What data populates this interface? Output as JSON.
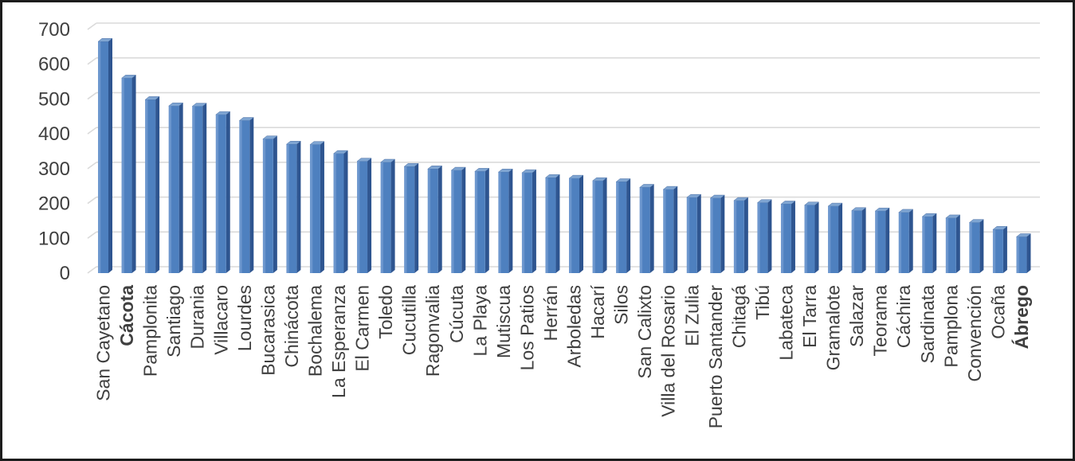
{
  "chart_data": {
    "type": "bar",
    "style": "3d-column-excel",
    "title": "",
    "xlabel": "",
    "ylabel": "",
    "categories": [
      "San Cayetano",
      "Cácota",
      "Pamplonita",
      "Santiago",
      "Durania",
      "Villacaro",
      "Lourdes",
      "Bucarasica",
      "Chinácota",
      "Bochalema",
      "La Esperanza",
      "El Carmen",
      "Toledo",
      "Cucutilla",
      "Ragonvalia",
      "Cúcuta",
      "La Playa",
      "Mutiscua",
      "Los Patios",
      "Herrán",
      "Arboledas",
      "Hacarí",
      "Silos",
      "San Calixto",
      "Villa del Rosario",
      "El Zulia",
      "Puerto Santander",
      "Chitagá",
      "Tibú",
      "Labateca",
      "El Tarra",
      "Gramalote",
      "Salazar",
      "Teorama",
      "Cáchira",
      "Sardinata",
      "Pamplona",
      "Convención",
      "Ocaña",
      "Ábrego"
    ],
    "values": [
      665,
      560,
      498,
      480,
      479,
      455,
      438,
      385,
      370,
      369,
      343,
      321,
      318,
      306,
      299,
      295,
      292,
      290,
      288,
      274,
      272,
      265,
      262,
      246,
      240,
      217,
      215,
      208,
      202,
      198,
      195,
      192,
      179,
      178,
      174,
      162,
      158,
      145,
      125,
      104
    ],
    "bold_categories": [
      "Cácota",
      "Ábrego"
    ],
    "yticks": [
      0,
      100,
      200,
      300,
      400,
      500,
      600,
      700
    ],
    "ylim": [
      0,
      700
    ],
    "grid": true,
    "legend": "none",
    "colors": {
      "bar_front": "#4e80bf",
      "bar_front_highlight": "#6d97ce",
      "bar_side": "#2e5590",
      "bar_top": "#7fa5d2",
      "gridline": "#dadada",
      "axis_text": "#3f3f3f",
      "frame_border": "#1c1c1c",
      "background": "#ffffff"
    }
  }
}
